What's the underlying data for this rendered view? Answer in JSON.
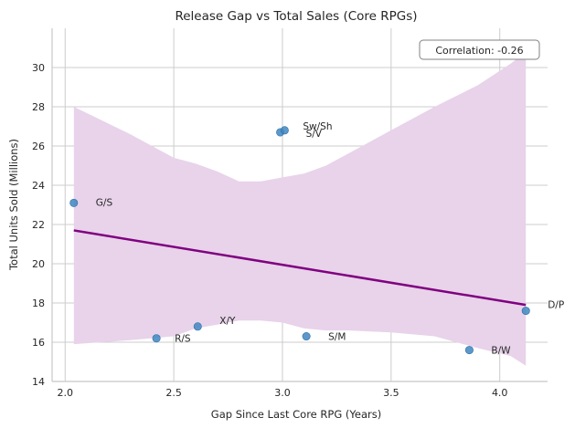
{
  "chart_data": {
    "type": "scatter",
    "title": "Release Gap vs Total Sales (Core RPGs)",
    "xlabel": "Gap Since Last Core RPG (Years)",
    "ylabel": "Total Units Sold (Millions)",
    "xlim": [
      1.94,
      4.22
    ],
    "ylim": [
      14,
      32
    ],
    "xticks": [
      2.0,
      2.5,
      3.0,
      3.5,
      4.0
    ],
    "yticks": [
      14,
      16,
      18,
      20,
      22,
      24,
      26,
      28,
      30
    ],
    "xtick_labels": [
      "2.0",
      "2.5",
      "3.0",
      "3.5",
      "4.0"
    ],
    "ytick_labels": [
      "14",
      "16",
      "18",
      "20",
      "22",
      "24",
      "26",
      "28",
      "30"
    ],
    "grid": true,
    "annotation": "Correlation: -0.26",
    "annotation_placement": "top-right",
    "points": [
      {
        "label": "G/S",
        "x": 2.04,
        "y": 23.1
      },
      {
        "label": "R/S",
        "x": 2.42,
        "y": 16.2
      },
      {
        "label": "X/Y",
        "x": 2.61,
        "y": 16.8
      },
      {
        "label": "S/V",
        "x": 2.99,
        "y": 26.7
      },
      {
        "label": "Sw/Sh",
        "x": 3.01,
        "y": 26.8
      },
      {
        "label": "S/M",
        "x": 3.11,
        "y": 16.3
      },
      {
        "label": "B/W",
        "x": 3.86,
        "y": 15.6
      },
      {
        "label": "D/P",
        "x": 4.12,
        "y": 17.6
      }
    ],
    "regression": {
      "x": [
        2.04,
        4.12
      ],
      "y": [
        21.7,
        17.9
      ]
    },
    "confidence_band": {
      "x": [
        2.04,
        2.3,
        2.5,
        2.6,
        2.7,
        2.8,
        2.9,
        3.0,
        3.1,
        3.2,
        3.3,
        3.5,
        3.7,
        3.9,
        4.05,
        4.12
      ],
      "upper": [
        28.0,
        26.6,
        25.4,
        25.1,
        24.7,
        24.2,
        24.2,
        24.4,
        24.6,
        25.0,
        25.6,
        26.8,
        28.0,
        29.1,
        30.2,
        30.8
      ],
      "lower": [
        15.9,
        16.1,
        16.3,
        16.7,
        16.9,
        17.1,
        17.1,
        17.0,
        16.7,
        16.6,
        16.6,
        16.5,
        16.3,
        15.7,
        15.3,
        14.8
      ]
    },
    "colors": {
      "points": "#3f86c0",
      "regression": "#800080",
      "band": "#e8d3ea",
      "grid": "#cccccc"
    }
  }
}
